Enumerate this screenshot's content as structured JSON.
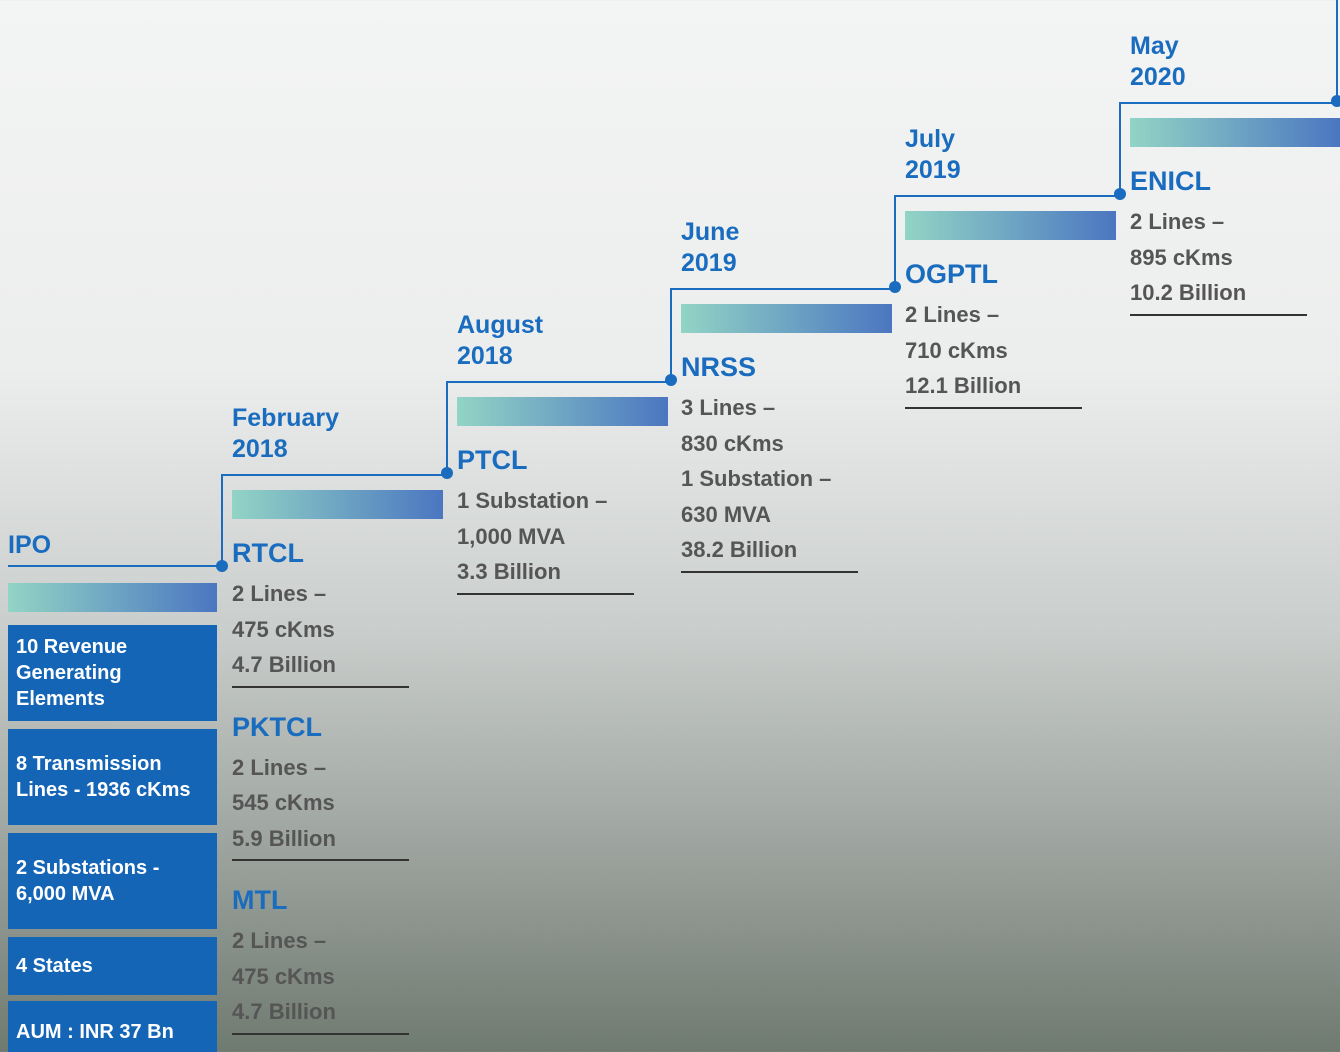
{
  "ipo": {
    "label": "IPO",
    "items": [
      "10 Revenue Generating Elements",
      "8 Transmission Lines - 1936 cKms",
      "2 Substations - 6,000 MVA",
      "4 States",
      "AUM  : INR 37 Bn"
    ]
  },
  "milestones": [
    {
      "date": [
        "February",
        "2018"
      ],
      "projects": [
        {
          "name": "RTCL",
          "details": [
            "2 Lines –",
            "475 cKms",
            "4.7 Billion"
          ]
        },
        {
          "name": "PKTCL",
          "details": [
            "2 Lines –",
            "545 cKms",
            "5.9 Billion"
          ]
        },
        {
          "name": "MTL",
          "details": [
            "2 Lines –",
            "475 cKms",
            "4.7 Billion"
          ]
        }
      ]
    },
    {
      "date": [
        "August",
        "2018"
      ],
      "projects": [
        {
          "name": "PTCL",
          "details": [
            "1 Substation –",
            "1,000 MVA",
            "3.3 Billion"
          ]
        }
      ]
    },
    {
      "date": [
        "June",
        "2019"
      ],
      "projects": [
        {
          "name": "NRSS",
          "details": [
            "3 Lines –",
            "830 cKms",
            "1 Substation –",
            "630 MVA",
            "38.2 Billion"
          ]
        }
      ]
    },
    {
      "date": [
        "July",
        "2019"
      ],
      "projects": [
        {
          "name": "OGPTL",
          "details": [
            "2 Lines –",
            "710 cKms",
            "12.1 Billion"
          ]
        }
      ]
    },
    {
      "date": [
        "May",
        "2020"
      ],
      "projects": [
        {
          "name": "ENICL",
          "details": [
            "2 Lines –",
            "895 cKms",
            "10.2 Billion"
          ]
        }
      ]
    }
  ]
}
